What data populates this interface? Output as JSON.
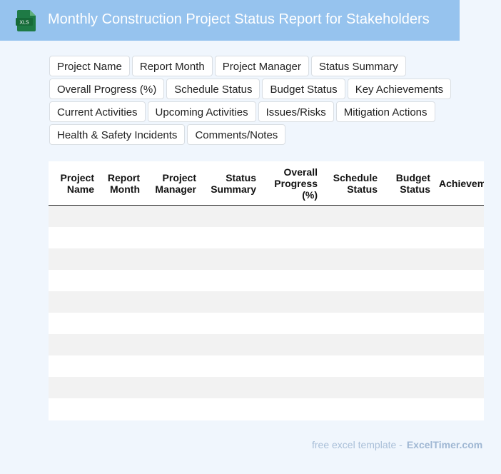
{
  "header": {
    "title": "Monthly Construction Project Status Report for Stakeholders",
    "icon_label": "XLS"
  },
  "tags": [
    "Project Name",
    "Report Month",
    "Project Manager",
    "Status Summary",
    "Overall Progress (%)",
    "Schedule Status",
    "Budget Status",
    "Key Achievements",
    "Current Activities",
    "Upcoming Activities",
    "Issues/Risks",
    "Mitigation Actions",
    "Health & Safety Incidents",
    "Comments/Notes"
  ],
  "table": {
    "columns": [
      "Project Name",
      "Report Month",
      "Project Manager",
      "Status Summary",
      "Overall Progress (%)",
      "Schedule Status",
      "Budget Status",
      "Achievem"
    ],
    "rows": [
      [],
      [],
      [],
      [],
      [],
      [],
      [],
      [],
      [],
      []
    ]
  },
  "footer": {
    "text": "free excel template -",
    "brand": "ExcelTimer.com"
  },
  "colors": {
    "header_bg": "#96c3ee",
    "page_bg": "#f0f6fd",
    "icon_green": "#1e7a45"
  }
}
